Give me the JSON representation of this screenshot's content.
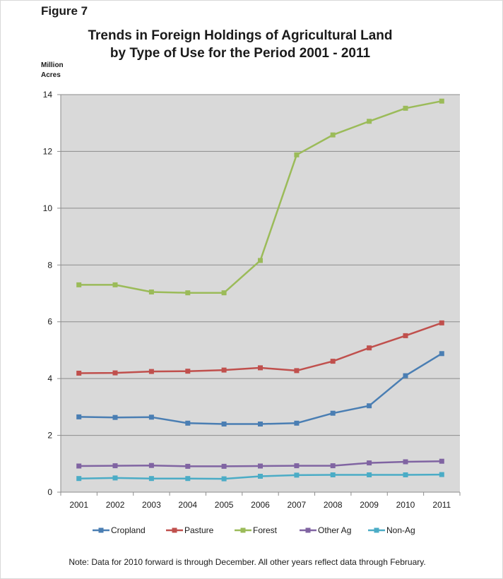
{
  "figure_label": "Figure 7",
  "title_line1": "Trends in Foreign Holdings of Agricultural Land",
  "title_line2": "by Type of Use for the Period 2001 - 2011",
  "ylabel_line1": "Million",
  "ylabel_line2": "Acres",
  "footnote": "Note: Data for 2010 forward is through December.  All other years reflect data through February.",
  "colors": {
    "plot_background": "#d9d9d9",
    "gridline": "#8c8c8c",
    "axis": "#8c8c8c"
  },
  "chart_data": {
    "type": "line",
    "title": "Trends in Foreign Holdings of Agricultural Land by Type of Use for the Period 2001 - 2011",
    "xlabel": "",
    "ylabel": "Million Acres",
    "categories": [
      "2001",
      "2002",
      "2003",
      "2004",
      "2005",
      "2006",
      "2007",
      "2008",
      "2009",
      "2010",
      "2011"
    ],
    "ylim": [
      0,
      14
    ],
    "yticks": [
      0,
      2,
      4,
      6,
      8,
      10,
      12,
      14
    ],
    "grid": true,
    "legend_position": "bottom",
    "series": [
      {
        "name": "Cropland",
        "color": "#4a7eb3",
        "values": [
          2.65,
          2.63,
          2.64,
          2.43,
          2.4,
          2.4,
          2.43,
          2.78,
          3.04,
          4.1,
          4.88
        ]
      },
      {
        "name": "Pasture",
        "color": "#c0504d",
        "values": [
          4.19,
          4.2,
          4.25,
          4.26,
          4.3,
          4.38,
          4.28,
          4.61,
          5.08,
          5.51,
          5.96
        ]
      },
      {
        "name": "Forest",
        "color": "#9bbb59",
        "values": [
          7.3,
          7.3,
          7.05,
          7.02,
          7.02,
          8.16,
          11.88,
          12.58,
          13.06,
          13.52,
          13.77
        ]
      },
      {
        "name": "Other Ag",
        "color": "#8064a2",
        "values": [
          0.92,
          0.93,
          0.94,
          0.91,
          0.91,
          0.92,
          0.93,
          0.93,
          1.03,
          1.07,
          1.09
        ]
      },
      {
        "name": "Non-Ag",
        "color": "#4bacc6",
        "values": [
          0.48,
          0.5,
          0.48,
          0.48,
          0.47,
          0.56,
          0.6,
          0.61,
          0.61,
          0.61,
          0.62
        ]
      }
    ]
  }
}
